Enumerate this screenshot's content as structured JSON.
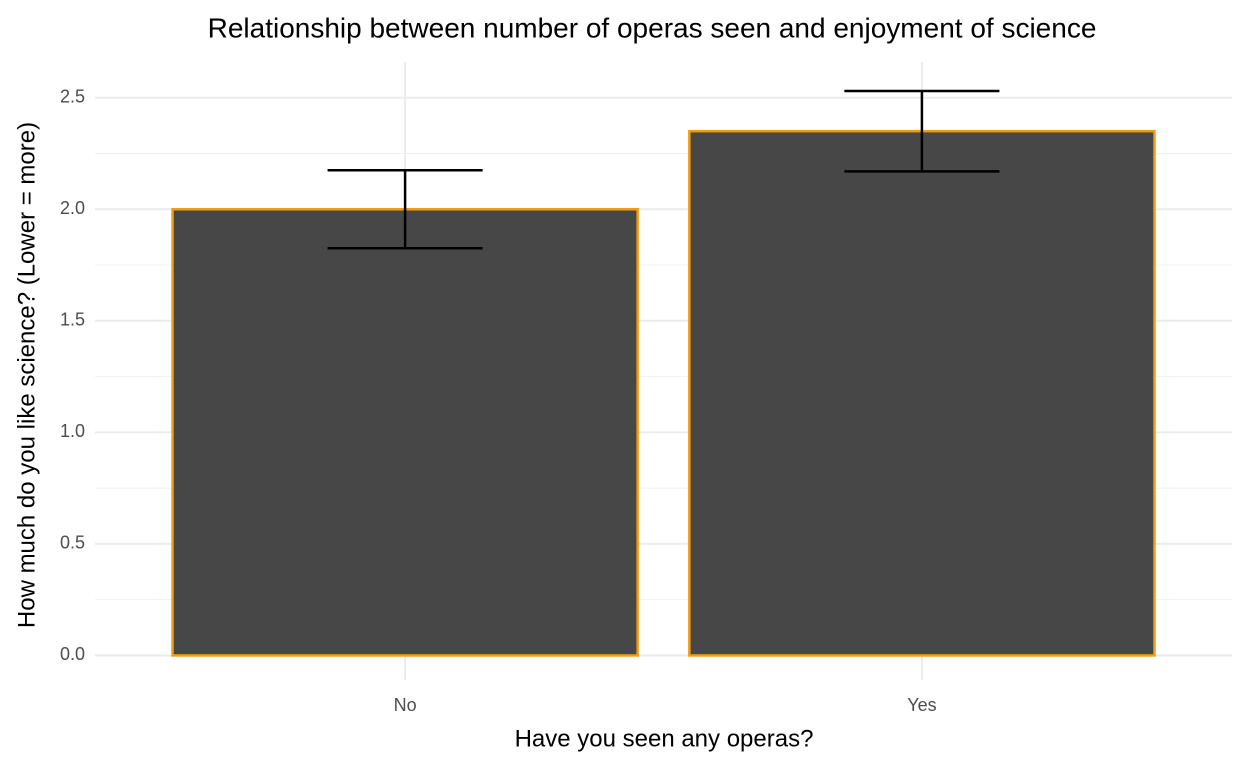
{
  "chart_data": {
    "type": "bar",
    "title": "Relationship between number of operas seen and enjoyment of science",
    "x_label": "Have you seen any operas?",
    "y_label": "How much do you like science? (Lower = more)",
    "categories": [
      "No",
      "Yes"
    ],
    "values": [
      2.0,
      2.35
    ],
    "errors": [
      0.175,
      0.18
    ],
    "color": "#474747",
    "edge_color": "#f39c12",
    "error_color": "#000000",
    "ylim": [
      -0.11,
      2.66
    ],
    "yticks": [
      {
        "value": 0,
        "label": "0.0"
      },
      {
        "value": 0.5,
        "label": "0.5"
      },
      {
        "value": 1,
        "label": "1.0"
      },
      {
        "value": 1.5,
        "label": "1.5"
      },
      {
        "value": 2,
        "label": "2.0"
      },
      {
        "value": 2.5,
        "label": "2.5"
      }
    ],
    "yticks_minor": [
      0.25,
      0.75,
      1.25,
      1.75,
      2.25
    ],
    "grid": true
  }
}
